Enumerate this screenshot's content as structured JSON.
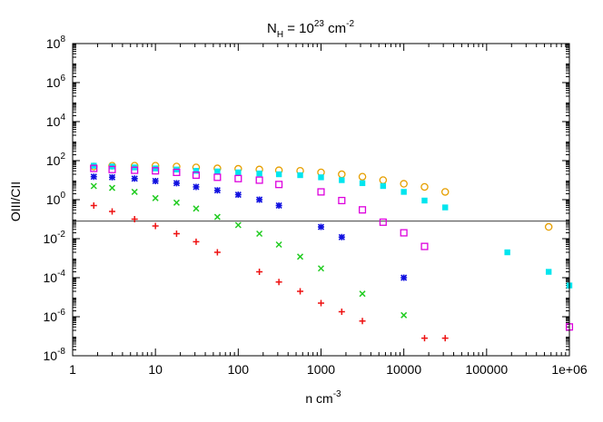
{
  "chart_data": {
    "type": "scatter",
    "title": {
      "base": "N",
      "sub": "H",
      "mid": " = 10",
      "sup": "23",
      "unit": " cm",
      "unit_sup": "-2"
    },
    "xlabel": {
      "base": "n cm",
      "sup": "-3"
    },
    "ylabel": "OIII/CII",
    "x_scale": "log",
    "y_scale": "log",
    "xlim": [
      1,
      1000000
    ],
    "ylim": [
      1e-08,
      100000000.0
    ],
    "x_ticks": [
      {
        "value": 1,
        "label": "1"
      },
      {
        "value": 10,
        "label": "10"
      },
      {
        "value": 100,
        "label": "100"
      },
      {
        "value": 1000,
        "label": "1000"
      },
      {
        "value": 10000,
        "label": "10000"
      },
      {
        "value": 100000,
        "label": "100000"
      },
      {
        "value": 1000000,
        "label": "1e+06"
      }
    ],
    "y_ticks": [
      {
        "value": 1e-08,
        "base": "10",
        "exp": "-8"
      },
      {
        "value": 1e-06,
        "base": "10",
        "exp": "-6"
      },
      {
        "value": 0.0001,
        "base": "10",
        "exp": "-4"
      },
      {
        "value": 0.01,
        "base": "10",
        "exp": "-2"
      },
      {
        "value": 1,
        "base": "10",
        "exp": "0"
      },
      {
        "value": 100,
        "base": "10",
        "exp": "2"
      },
      {
        "value": 10000,
        "base": "10",
        "exp": "4"
      },
      {
        "value": 1000000,
        "base": "10",
        "exp": "6"
      },
      {
        "value": 100000000,
        "base": "10",
        "exp": "8"
      }
    ],
    "reference_line": {
      "y": 0.08,
      "color": "#555555"
    },
    "grid": false,
    "series": [
      {
        "marker": "circle",
        "color": "#e69f00",
        "points": [
          [
            1.8,
            50
          ],
          [
            3,
            55
          ],
          [
            5.6,
            55
          ],
          [
            10,
            55
          ],
          [
            18,
            50
          ],
          [
            31,
            45
          ],
          [
            56,
            40
          ],
          [
            100,
            38
          ],
          [
            180,
            35
          ],
          [
            310,
            32
          ],
          [
            560,
            30
          ],
          [
            1000,
            25
          ],
          [
            1780,
            20
          ],
          [
            3160,
            15
          ],
          [
            5620,
            10
          ],
          [
            10000,
            6.5
          ],
          [
            17800,
            4.5
          ],
          [
            31600,
            2.5
          ],
          [
            562000,
            0.04
          ]
        ]
      },
      {
        "marker": "filled-square",
        "color": "#00e5ee",
        "points": [
          [
            1.8,
            55
          ],
          [
            3,
            50
          ],
          [
            5.6,
            45
          ],
          [
            10,
            40
          ],
          [
            18,
            35
          ],
          [
            31,
            30
          ],
          [
            56,
            28
          ],
          [
            100,
            25
          ],
          [
            180,
            22
          ],
          [
            310,
            20
          ],
          [
            560,
            18
          ],
          [
            1000,
            14
          ],
          [
            1780,
            10
          ],
          [
            3160,
            7
          ],
          [
            5620,
            5
          ],
          [
            10000,
            2.5
          ],
          [
            17800,
            0.9
          ],
          [
            31600,
            0.4
          ],
          [
            178000,
            0.002
          ],
          [
            562000,
            0.0002
          ],
          [
            1000000,
            4e-05
          ]
        ]
      },
      {
        "marker": "open-square",
        "color": "#dd00dd",
        "points": [
          [
            1.8,
            40
          ],
          [
            3,
            35
          ],
          [
            5.6,
            32
          ],
          [
            10,
            30
          ],
          [
            18,
            25
          ],
          [
            31,
            18
          ],
          [
            56,
            14
          ],
          [
            100,
            12
          ],
          [
            180,
            10
          ],
          [
            310,
            6
          ],
          [
            1000,
            2.5
          ],
          [
            1780,
            0.9
          ],
          [
            3160,
            0.3
          ],
          [
            5620,
            0.07
          ],
          [
            10000,
            0.02
          ],
          [
            17800,
            0.004
          ],
          [
            1000000,
            3e-07
          ]
        ]
      },
      {
        "marker": "star",
        "color": "#1010e0",
        "points": [
          [
            1.8,
            15
          ],
          [
            3,
            14
          ],
          [
            5.6,
            12
          ],
          [
            10,
            9
          ],
          [
            18,
            7
          ],
          [
            31,
            4.5
          ],
          [
            56,
            3
          ],
          [
            100,
            1.8
          ],
          [
            180,
            1.0
          ],
          [
            310,
            0.5
          ],
          [
            1000,
            0.04
          ],
          [
            1780,
            0.012
          ],
          [
            10000,
            0.0001
          ]
        ]
      },
      {
        "marker": "x",
        "color": "#22cc22",
        "points": [
          [
            1.8,
            5
          ],
          [
            3,
            4
          ],
          [
            5.6,
            2.5
          ],
          [
            10,
            1.2
          ],
          [
            18,
            0.7
          ],
          [
            31,
            0.35
          ],
          [
            56,
            0.13
          ],
          [
            100,
            0.05
          ],
          [
            180,
            0.018
          ],
          [
            310,
            0.005
          ],
          [
            560,
            0.0012
          ],
          [
            1000,
            0.0003
          ],
          [
            3160,
            1.5e-05
          ],
          [
            10000,
            1.2e-06
          ]
        ]
      },
      {
        "marker": "plus",
        "color": "#ee1111",
        "points": [
          [
            1.8,
            0.5
          ],
          [
            3,
            0.25
          ],
          [
            5.6,
            0.1
          ],
          [
            10,
            0.045
          ],
          [
            18,
            0.018
          ],
          [
            31,
            0.007
          ],
          [
            56,
            0.002
          ],
          [
            180,
            0.0002
          ],
          [
            310,
            6e-05
          ],
          [
            560,
            2e-05
          ],
          [
            1000,
            5e-06
          ],
          [
            1780,
            1.8e-06
          ],
          [
            3160,
            6e-07
          ],
          [
            17800,
            8e-08
          ],
          [
            31600,
            8e-08
          ]
        ]
      }
    ]
  }
}
